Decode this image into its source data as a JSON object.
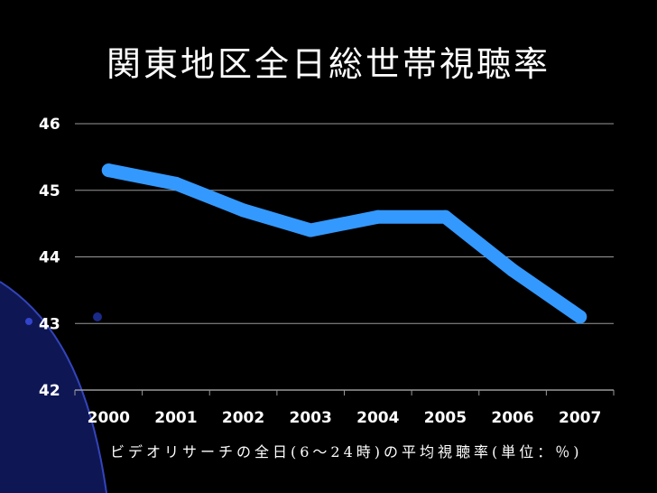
{
  "slide": {
    "title": "関東地区全日総世帯視聴率",
    "caption": "ビデオリサーチの全日(6～24時)の平均視聴率(単位：％)"
  },
  "colors": {
    "background": "#000000",
    "line": "#3399ff",
    "gridline": "#999999",
    "text": "#ffffff",
    "decor": "#1a2a99"
  },
  "chart_data": {
    "type": "line",
    "categories": [
      "2000",
      "2001",
      "2002",
      "2003",
      "2004",
      "2005",
      "2006",
      "2007"
    ],
    "series": [
      {
        "values": [
          45.3,
          45.1,
          44.7,
          44.4,
          44.6,
          44.6,
          43.8,
          43.1
        ]
      }
    ],
    "ylim": [
      42,
      46
    ],
    "yticks": [
      "42",
      "43",
      "44",
      "45",
      "46"
    ],
    "grid": true,
    "legend": "none"
  }
}
